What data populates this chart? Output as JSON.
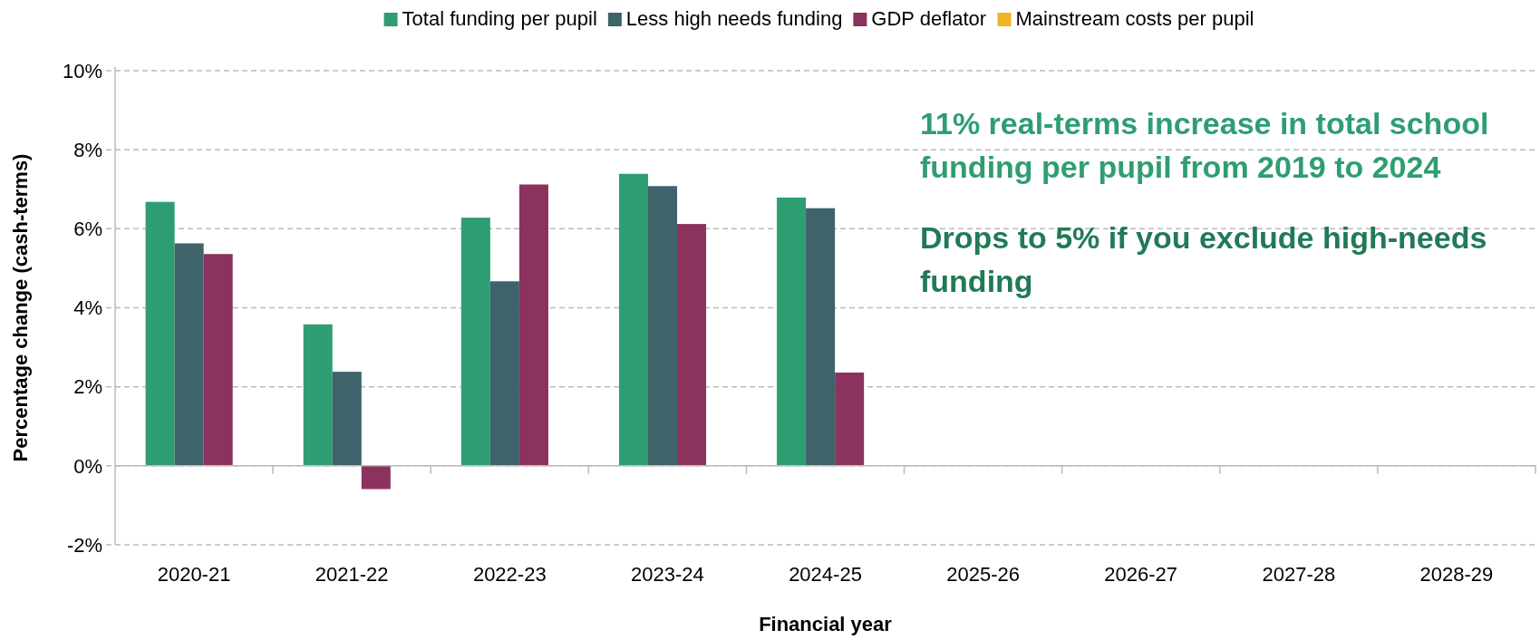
{
  "chart_data": {
    "type": "bar",
    "xlabel": "Financial year",
    "ylabel": "Percentage change (cash-terms)",
    "categories": [
      "2020-21",
      "2021-22",
      "2022-23",
      "2023-24",
      "2024-25",
      "2025-26",
      "2026-27",
      "2027-28",
      "2028-29"
    ],
    "series": [
      {
        "name": "Total funding per pupil",
        "color": "#2e9e72",
        "values": [
          6.68,
          3.58,
          6.28,
          7.39,
          6.79,
          null,
          null,
          null,
          null
        ]
      },
      {
        "name": "Less high needs funding",
        "color": "#3e636b",
        "values": [
          5.63,
          2.38,
          4.67,
          7.08,
          6.52,
          null,
          null,
          null,
          null
        ]
      },
      {
        "name": "GDP deflator",
        "color": "#8c325f",
        "values": [
          5.36,
          -0.59,
          7.12,
          6.12,
          2.36,
          null,
          null,
          null,
          null
        ]
      },
      {
        "name": "Mainstream costs per pupil",
        "color": "#f0b323",
        "values": [
          null,
          null,
          null,
          null,
          null,
          null,
          null,
          null,
          null
        ]
      }
    ],
    "ylim": [
      -2,
      10
    ],
    "yticks": [
      {
        "value": -2,
        "label": "-2%"
      },
      {
        "value": 0,
        "label": "0%"
      },
      {
        "value": 2,
        "label": "2%"
      },
      {
        "value": 4,
        "label": "4%"
      },
      {
        "value": 6,
        "label": "6%"
      },
      {
        "value": 8,
        "label": "8%"
      },
      {
        "value": 10,
        "label": "10%"
      }
    ],
    "grid": "y",
    "legend": "top",
    "annotations": [
      "11% real-terms increase in total school funding per pupil from 2019 to 2024",
      "Drops to 5% if you exclude high-needs funding"
    ]
  }
}
